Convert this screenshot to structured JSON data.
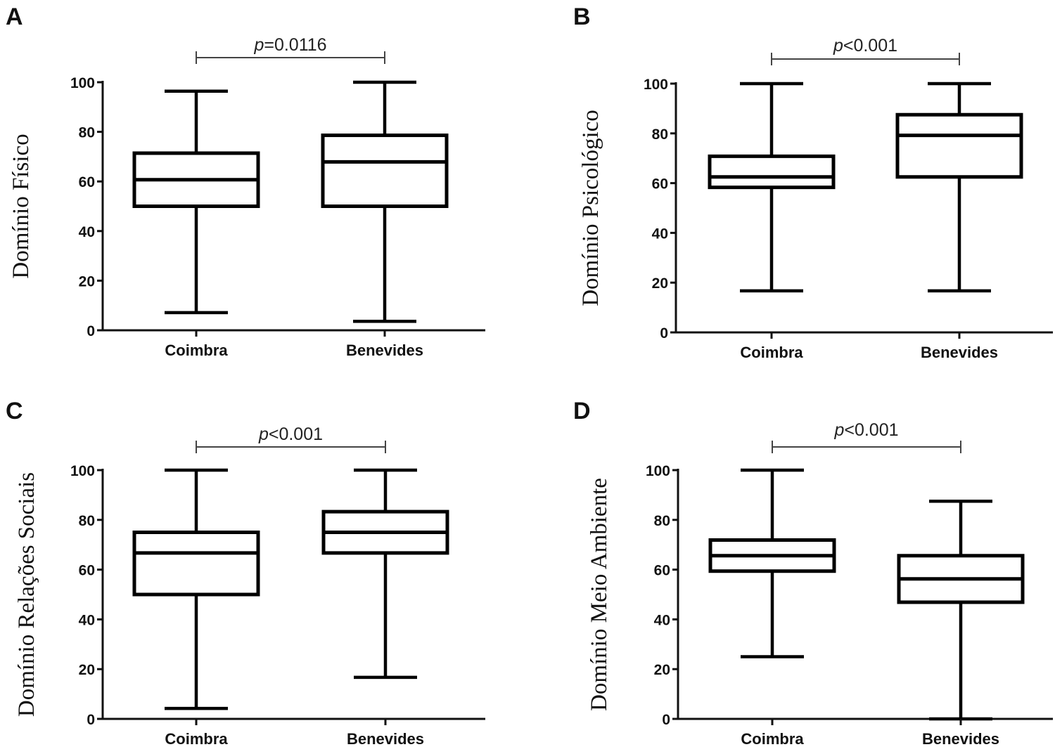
{
  "chart_data": [
    {
      "type": "boxplot",
      "panel": "A",
      "title": "",
      "xlabel": "",
      "ylabel": "Domínio Físico",
      "ylim": [
        0,
        100
      ],
      "yticks": [
        0,
        20,
        40,
        60,
        80,
        100
      ],
      "categories": [
        "Coimbra",
        "Benevides"
      ],
      "series": [
        {
          "name": "Coimbra",
          "min": 7.1,
          "q1": 50.0,
          "median": 60.7,
          "q3": 71.4,
          "max": 96.4
        },
        {
          "name": "Benevides",
          "min": 3.6,
          "q1": 50.0,
          "median": 67.9,
          "q3": 78.6,
          "max": 100.0
        }
      ],
      "annotation": {
        "label": "p",
        "text": "=0.0116"
      }
    },
    {
      "type": "boxplot",
      "panel": "B",
      "title": "",
      "xlabel": "",
      "ylabel": "Domínio Psicológico",
      "ylim": [
        0,
        100
      ],
      "yticks": [
        0,
        20,
        40,
        60,
        80,
        100
      ],
      "categories": [
        "Coimbra",
        "Benevides"
      ],
      "series": [
        {
          "name": "Coimbra",
          "min": 16.7,
          "q1": 58.3,
          "median": 62.5,
          "q3": 70.8,
          "max": 100.0
        },
        {
          "name": "Benevides",
          "min": 16.7,
          "q1": 62.5,
          "median": 79.2,
          "q3": 87.5,
          "max": 100.0
        }
      ],
      "annotation": {
        "label": "p",
        "text": "<0.001"
      }
    },
    {
      "type": "boxplot",
      "panel": "C",
      "title": "",
      "xlabel": "",
      "ylabel": "Domínio Relações Sociais",
      "ylim": [
        0,
        100
      ],
      "yticks": [
        0,
        20,
        40,
        60,
        80,
        100
      ],
      "categories": [
        "Coimbra",
        "Benevides"
      ],
      "series": [
        {
          "name": "Coimbra",
          "min": 4.2,
          "q1": 50.0,
          "median": 66.7,
          "q3": 75.0,
          "max": 100.0
        },
        {
          "name": "Benevides",
          "min": 16.7,
          "q1": 66.7,
          "median": 75.0,
          "q3": 83.3,
          "max": 100.0
        }
      ],
      "annotation": {
        "label": "p",
        "text": "<0.001"
      }
    },
    {
      "type": "boxplot",
      "panel": "D",
      "title": "",
      "xlabel": "",
      "ylabel": "Domínio Meio Ambiente",
      "ylim": [
        0,
        100
      ],
      "yticks": [
        0,
        20,
        40,
        60,
        80,
        100
      ],
      "categories": [
        "Coimbra",
        "Benevides"
      ],
      "series": [
        {
          "name": "Coimbra",
          "min": 25.0,
          "q1": 59.4,
          "median": 65.6,
          "q3": 71.9,
          "max": 100.0
        },
        {
          "name": "Benevides",
          "min": 0.0,
          "q1": 46.9,
          "median": 56.3,
          "q3": 65.6,
          "max": 87.5
        }
      ],
      "annotation": {
        "label": "p",
        "text": "<0.001"
      }
    }
  ]
}
